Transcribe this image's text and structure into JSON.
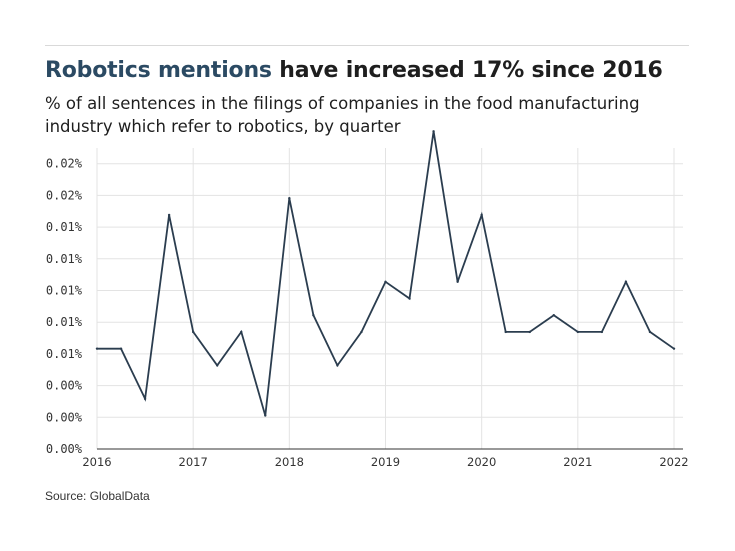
{
  "header": {
    "title_highlight": "Robotics mentions",
    "title_rest": " have increased 17% since 2016",
    "subtitle": "% of all sentences in the filings of companies in the food manufacturing industry which refer to robotics, by quarter"
  },
  "footer": {
    "source": "Source: GlobalData"
  },
  "colors": {
    "line": "#2b3d4f",
    "grid": "#e3e3e3",
    "highlight": "#2b4a63"
  },
  "chart_data": {
    "type": "line",
    "title": "",
    "xlabel": "",
    "ylabel": "",
    "x_tick_labels": [
      "2016",
      "2017",
      "2018",
      "2019",
      "2020",
      "2021",
      "2022"
    ],
    "y_tick_labels": [
      "0.00%",
      "0.00%",
      "0.00%",
      "0.01%",
      "0.01%",
      "0.01%",
      "0.01%",
      "0.01%",
      "0.02%",
      "0.02%"
    ],
    "ylim": [
      0,
      0.018
    ],
    "grid": true,
    "series": [
      {
        "x": [
          "2016 Q1",
          "2016 Q2",
          "2016 Q3",
          "2016 Q4",
          "2017 Q1",
          "2017 Q2",
          "2017 Q3",
          "2017 Q4",
          "2018 Q1",
          "2018 Q2",
          "2018 Q3",
          "2018 Q4",
          "2019 Q1",
          "2019 Q2",
          "2019 Q3",
          "2019 Q4",
          "2020 Q1",
          "2020 Q2",
          "2020 Q3",
          "2020 Q4",
          "2021 Q1",
          "2021 Q2",
          "2021 Q3",
          "2021 Q4",
          "2022 Q1"
        ],
        "values": [
          0.006,
          0.006,
          0.003,
          0.014,
          0.007,
          0.005,
          0.007,
          0.002,
          0.015,
          0.008,
          0.005,
          0.007,
          0.01,
          0.009,
          0.019,
          0.01,
          0.014,
          0.007,
          0.007,
          0.008,
          0.007,
          0.007,
          0.01,
          0.007,
          0.006
        ]
      }
    ]
  }
}
